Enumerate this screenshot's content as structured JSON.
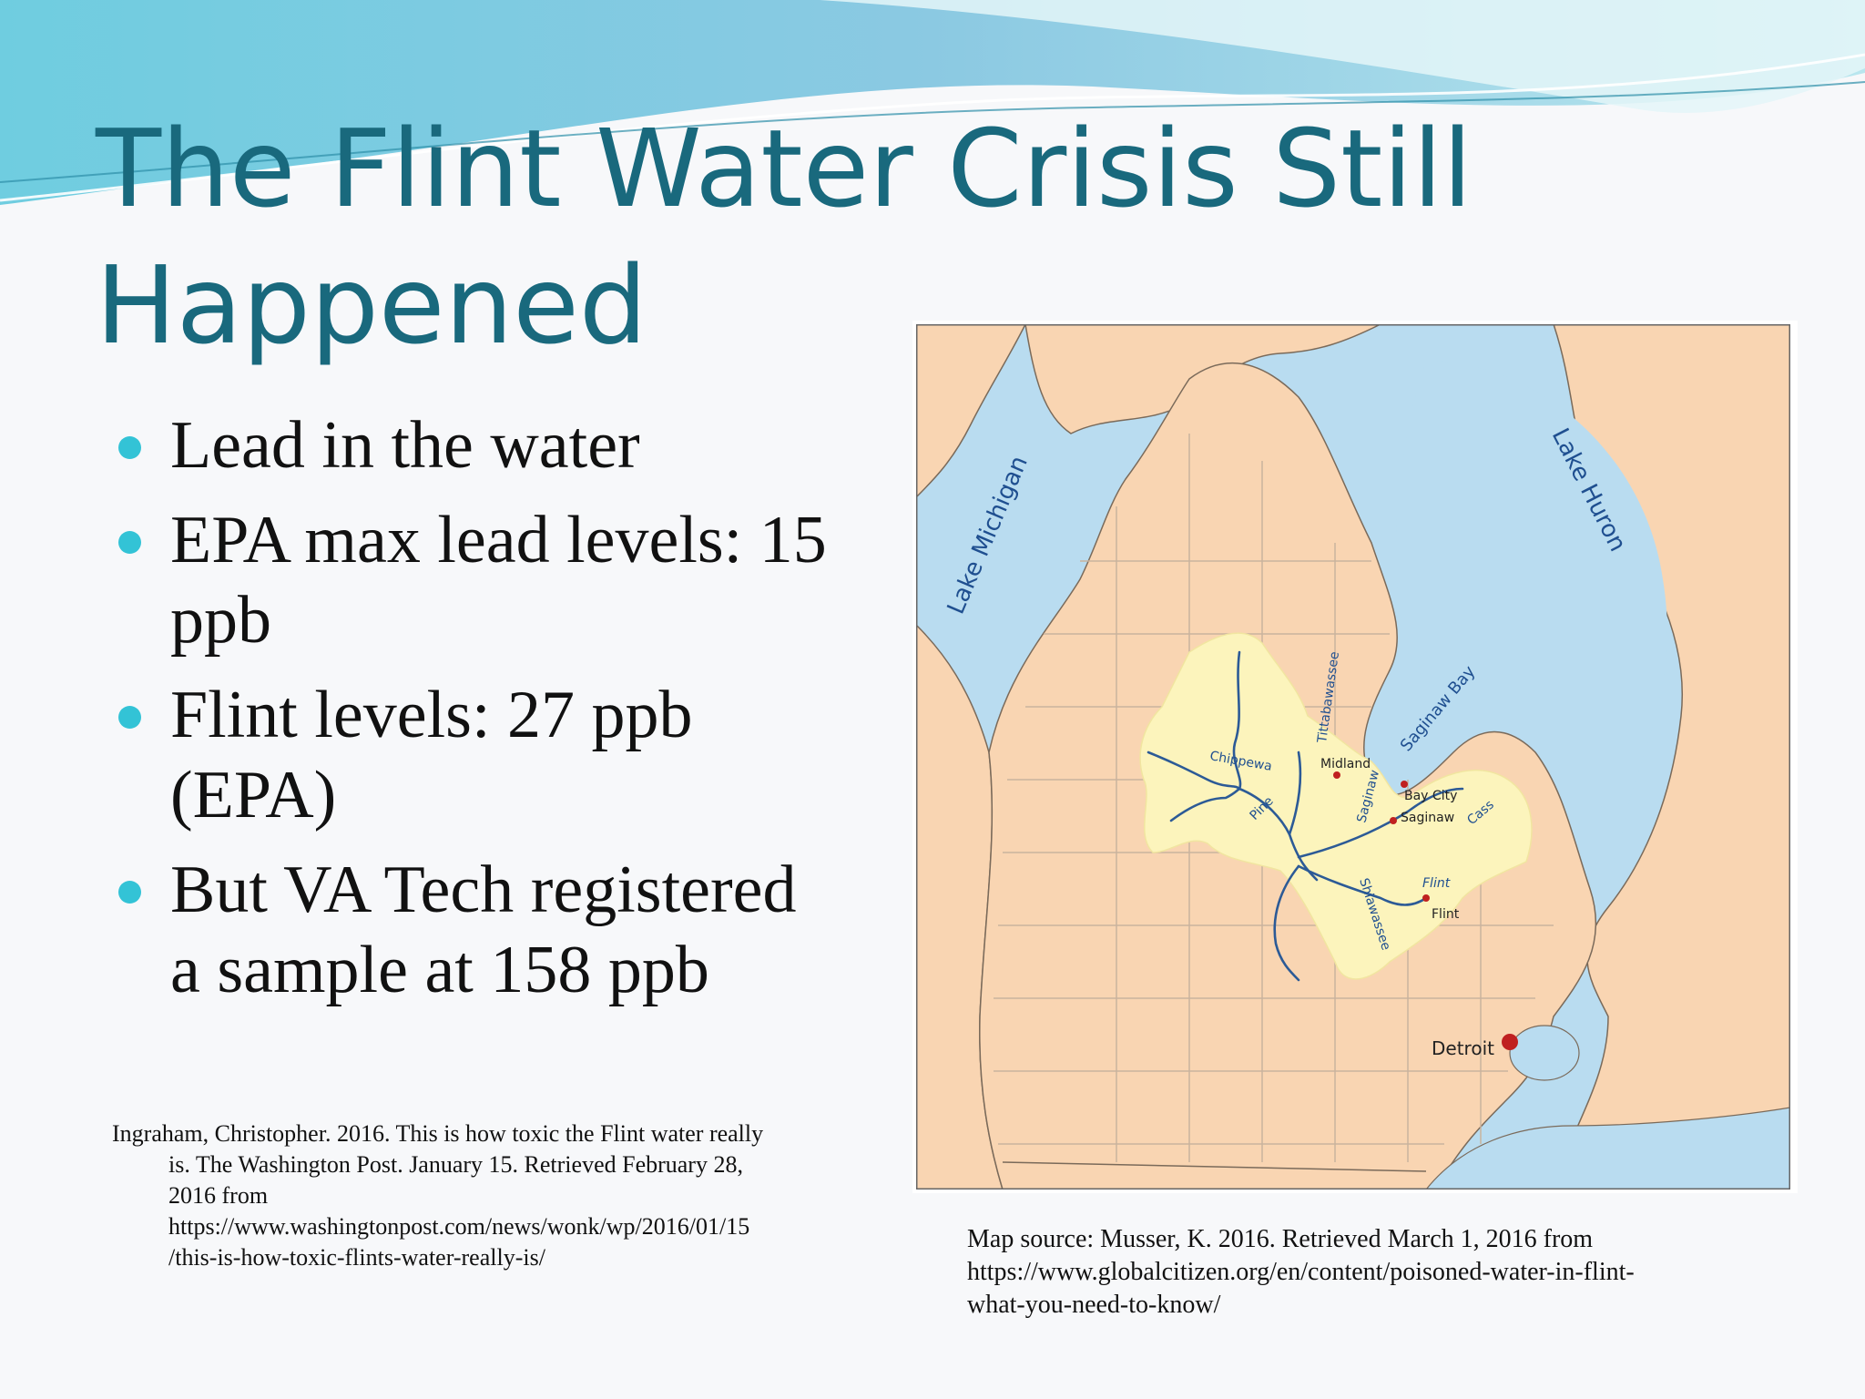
{
  "slide": {
    "title_line1": "The Flint Water Crisis Still",
    "title_line2": "Happened",
    "bullets": [
      {
        "line1": "Lead in the water",
        "line2": ""
      },
      {
        "line1": "EPA max lead levels: 15",
        "line2": "ppb"
      },
      {
        "line1": "Flint levels: 27 ppb",
        "line2": "(EPA)"
      },
      {
        "line1": "But VA Tech registered",
        "line2": "a sample at 158 ppb"
      }
    ],
    "citation_article": {
      "line1": "Ingraham, Christopher. 2016. This is how toxic the Flint water really",
      "line2": "is. The Washington Post. January 15. Retrieved February 28,",
      "line3": "2016 from",
      "line4": "https://www.washingtonpost.com/news/wonk/wp/2016/01/15",
      "line5": "/this-is-how-toxic-flints-water-really-is/"
    },
    "citation_map": {
      "line1": "Map source: Musser, K. 2016. Retrieved  March 1, 2016 from",
      "line2": "https://www.globalcitizen.org/en/content/poisoned-water-in-flint-",
      "line3": "what-you-need-to-know/"
    }
  },
  "map": {
    "lakes": [
      "Lake Michigan",
      "Lake Huron"
    ],
    "bay": "Saginaw Bay",
    "rivers": [
      "Tittabawassee",
      "Chippewa",
      "Pine",
      "Saginaw",
      "Cass",
      "Flint",
      "Shiawassee"
    ],
    "cities": [
      "Midland",
      "Bay City",
      "Saginaw",
      "Flint",
      "Detroit"
    ],
    "colors": {
      "water": "#b9dcf0",
      "land": "#f9d5b2",
      "watershed": "#fcf4bc",
      "river": "#2c5a96",
      "county_line": "#c9b39e",
      "city": "#c02020",
      "title": "#19697d",
      "bullet": "#33c3d6"
    }
  }
}
